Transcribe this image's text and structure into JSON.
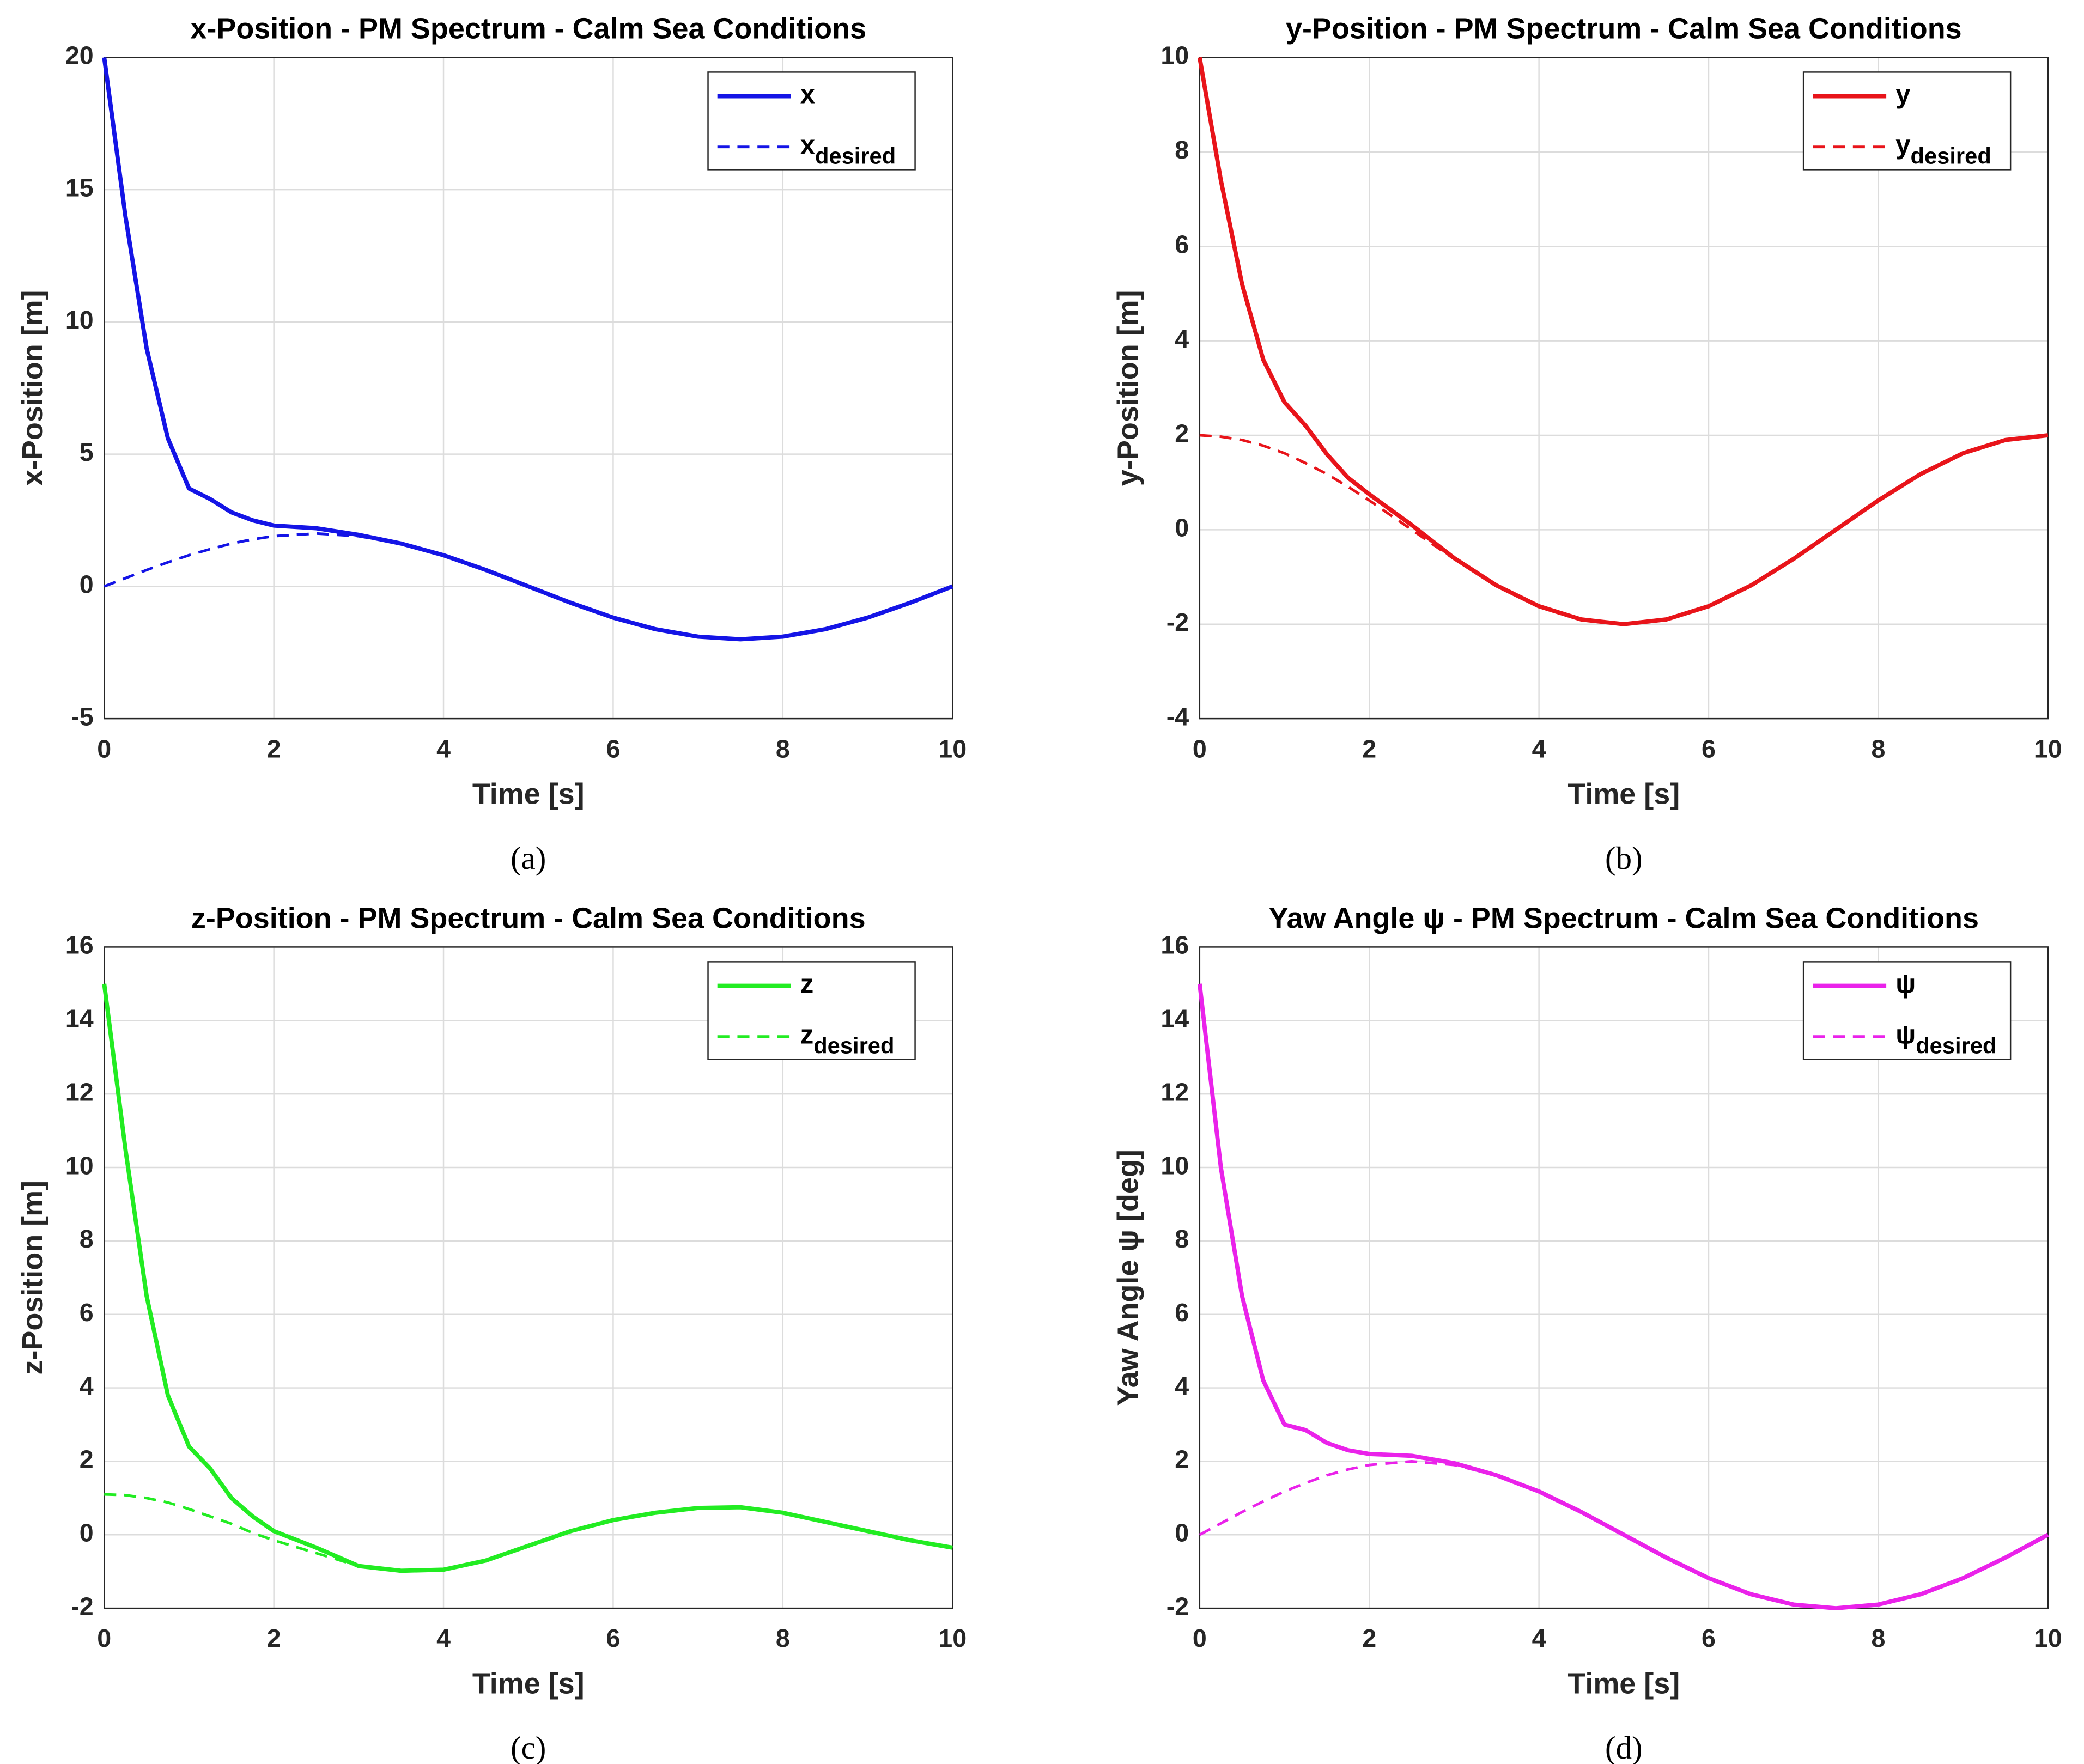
{
  "chart_data": [
    {
      "type": "line",
      "title": "x-Position - PM Spectrum - Calm Sea Conditions",
      "xlabel": "Time [s]",
      "ylabel": "x-Position [m]",
      "caption": "(a)",
      "x": [
        0,
        0.25,
        0.5,
        0.75,
        1,
        1.25,
        1.5,
        1.75,
        2,
        2.5,
        3,
        3.5,
        4,
        4.5,
        5,
        5.5,
        6,
        6.5,
        7,
        7.5,
        8,
        8.5,
        9,
        9.5,
        10
      ],
      "xlim": [
        0,
        10
      ],
      "xticks": [
        0,
        2,
        4,
        6,
        8,
        10
      ],
      "ylim": [
        -5,
        20
      ],
      "yticks": [
        -5,
        0,
        5,
        10,
        15,
        20
      ],
      "grid": true,
      "legend": "upper right",
      "series": [
        {
          "name": "x",
          "color": "#1414e6",
          "style": "solid",
          "values": [
            20,
            14,
            9,
            5.6,
            3.7,
            3.3,
            2.8,
            2.5,
            2.3,
            2.2,
            1.95,
            1.62,
            1.18,
            0.62,
            0,
            -0.62,
            -1.18,
            -1.62,
            -1.9,
            -2,
            -1.9,
            -1.62,
            -1.18,
            -0.62,
            0
          ]
        },
        {
          "name": "x",
          "subscript": "desired",
          "color": "#1414e6",
          "style": "dashed",
          "values": [
            0,
            0.31,
            0.62,
            0.91,
            1.18,
            1.41,
            1.62,
            1.78,
            1.9,
            2,
            1.9,
            1.62,
            1.18,
            0.62,
            0,
            -0.62,
            -1.18,
            -1.62,
            -1.9,
            -2,
            -1.9,
            -1.62,
            -1.18,
            -0.62,
            0
          ]
        }
      ]
    },
    {
      "type": "line",
      "title": "y-Position - PM Spectrum - Calm Sea Conditions",
      "xlabel": "Time [s]",
      "ylabel": "y-Position [m]",
      "caption": "(b)",
      "x": [
        0,
        0.25,
        0.5,
        0.75,
        1,
        1.25,
        1.5,
        1.75,
        2,
        2.5,
        3,
        3.5,
        4,
        4.5,
        5,
        5.5,
        6,
        6.5,
        7,
        7.5,
        8,
        8.5,
        9,
        9.5,
        10
      ],
      "xlim": [
        0,
        10
      ],
      "xticks": [
        0,
        2,
        4,
        6,
        8,
        10
      ],
      "ylim": [
        -4,
        10
      ],
      "yticks": [
        -4,
        -2,
        0,
        2,
        4,
        6,
        8,
        10
      ],
      "grid": true,
      "legend": "upper right",
      "series": [
        {
          "name": "y",
          "color": "#e8141a",
          "style": "solid",
          "values": [
            10,
            7.4,
            5.2,
            3.6,
            2.7,
            2.2,
            1.6,
            1.1,
            0.75,
            0.1,
            -0.6,
            -1.18,
            -1.62,
            -1.9,
            -2,
            -1.9,
            -1.62,
            -1.18,
            -0.62,
            0,
            0.62,
            1.18,
            1.62,
            1.9,
            2
          ]
        },
        {
          "name": "y",
          "subscript": "desired",
          "color": "#e8141a",
          "style": "dashed",
          "values": [
            2,
            1.97,
            1.9,
            1.78,
            1.62,
            1.41,
            1.18,
            0.91,
            0.62,
            0,
            -0.62,
            -1.18,
            -1.62,
            -1.9,
            -2,
            -1.9,
            -1.62,
            -1.18,
            -0.62,
            0,
            0.62,
            1.18,
            1.62,
            1.9,
            2
          ]
        }
      ]
    },
    {
      "type": "line",
      "title": "z-Position - PM Spectrum - Calm Sea Conditions",
      "xlabel": "Time [s]",
      "ylabel": "z-Position [m]",
      "caption": "(c)",
      "x": [
        0,
        0.25,
        0.5,
        0.75,
        1,
        1.25,
        1.5,
        1.75,
        2,
        2.5,
        3,
        3.5,
        4,
        4.5,
        5,
        5.5,
        6,
        6.5,
        7,
        7.5,
        8,
        8.5,
        9,
        9.5,
        10
      ],
      "xlim": [
        0,
        10
      ],
      "xticks": [
        0,
        2,
        4,
        6,
        8,
        10
      ],
      "ylim": [
        -2,
        16
      ],
      "yticks": [
        -2,
        0,
        2,
        4,
        6,
        8,
        10,
        12,
        14,
        16
      ],
      "grid": true,
      "legend": "upper right",
      "series": [
        {
          "name": "z",
          "color": "#22ec22",
          "style": "solid",
          "values": [
            15,
            10.5,
            6.5,
            3.8,
            2.4,
            1.8,
            1,
            0.5,
            0.1,
            -0.35,
            -0.85,
            -0.98,
            -0.95,
            -0.7,
            -0.3,
            0.1,
            0.4,
            0.6,
            0.73,
            0.75,
            0.6,
            0.35,
            0.1,
            -0.15,
            -0.35
          ]
        },
        {
          "name": "z",
          "subscript": "desired",
          "color": "#22ec22",
          "style": "dashed",
          "values": [
            1.1,
            1.08,
            1,
            0.88,
            0.7,
            0.5,
            0.3,
            0.05,
            -0.15,
            -0.5,
            -0.85,
            -0.98,
            -0.95,
            -0.7,
            -0.3,
            0.1,
            0.4,
            0.6,
            0.73,
            0.75,
            0.6,
            0.35,
            0.1,
            -0.15,
            -0.35
          ]
        }
      ]
    },
    {
      "type": "line",
      "title": "Yaw Angle ψ - PM Spectrum - Calm Sea Conditions",
      "xlabel": "Time [s]",
      "ylabel": "Yaw Angle ψ [deg]",
      "caption": "(d)",
      "x": [
        0,
        0.25,
        0.5,
        0.75,
        1,
        1.25,
        1.5,
        1.75,
        2,
        2.5,
        3,
        3.5,
        4,
        4.5,
        5,
        5.5,
        6,
        6.5,
        7,
        7.5,
        8,
        8.5,
        9,
        9.5,
        10
      ],
      "xlim": [
        0,
        10
      ],
      "xticks": [
        0,
        2,
        4,
        6,
        8,
        10
      ],
      "ylim": [
        -2,
        16
      ],
      "yticks": [
        -2,
        0,
        2,
        4,
        6,
        8,
        10,
        12,
        14,
        16
      ],
      "grid": true,
      "legend": "upper right",
      "series": [
        {
          "name": "ψ",
          "color": "#ea22ea",
          "style": "solid",
          "values": [
            15,
            10,
            6.5,
            4.2,
            3,
            2.85,
            2.5,
            2.3,
            2.2,
            2.15,
            1.95,
            1.62,
            1.18,
            0.62,
            0,
            -0.62,
            -1.18,
            -1.62,
            -1.9,
            -2,
            -1.9,
            -1.62,
            -1.18,
            -0.62,
            0
          ]
        },
        {
          "name": "ψ",
          "subscript": "desired",
          "color": "#ea22ea",
          "style": "dashed",
          "values": [
            0,
            0.31,
            0.62,
            0.91,
            1.18,
            1.41,
            1.62,
            1.78,
            1.9,
            2,
            1.9,
            1.62,
            1.18,
            0.62,
            0,
            -0.62,
            -1.18,
            -1.62,
            -1.9,
            -2,
            -1.9,
            -1.62,
            -1.18,
            -0.62,
            0
          ]
        }
      ]
    }
  ]
}
